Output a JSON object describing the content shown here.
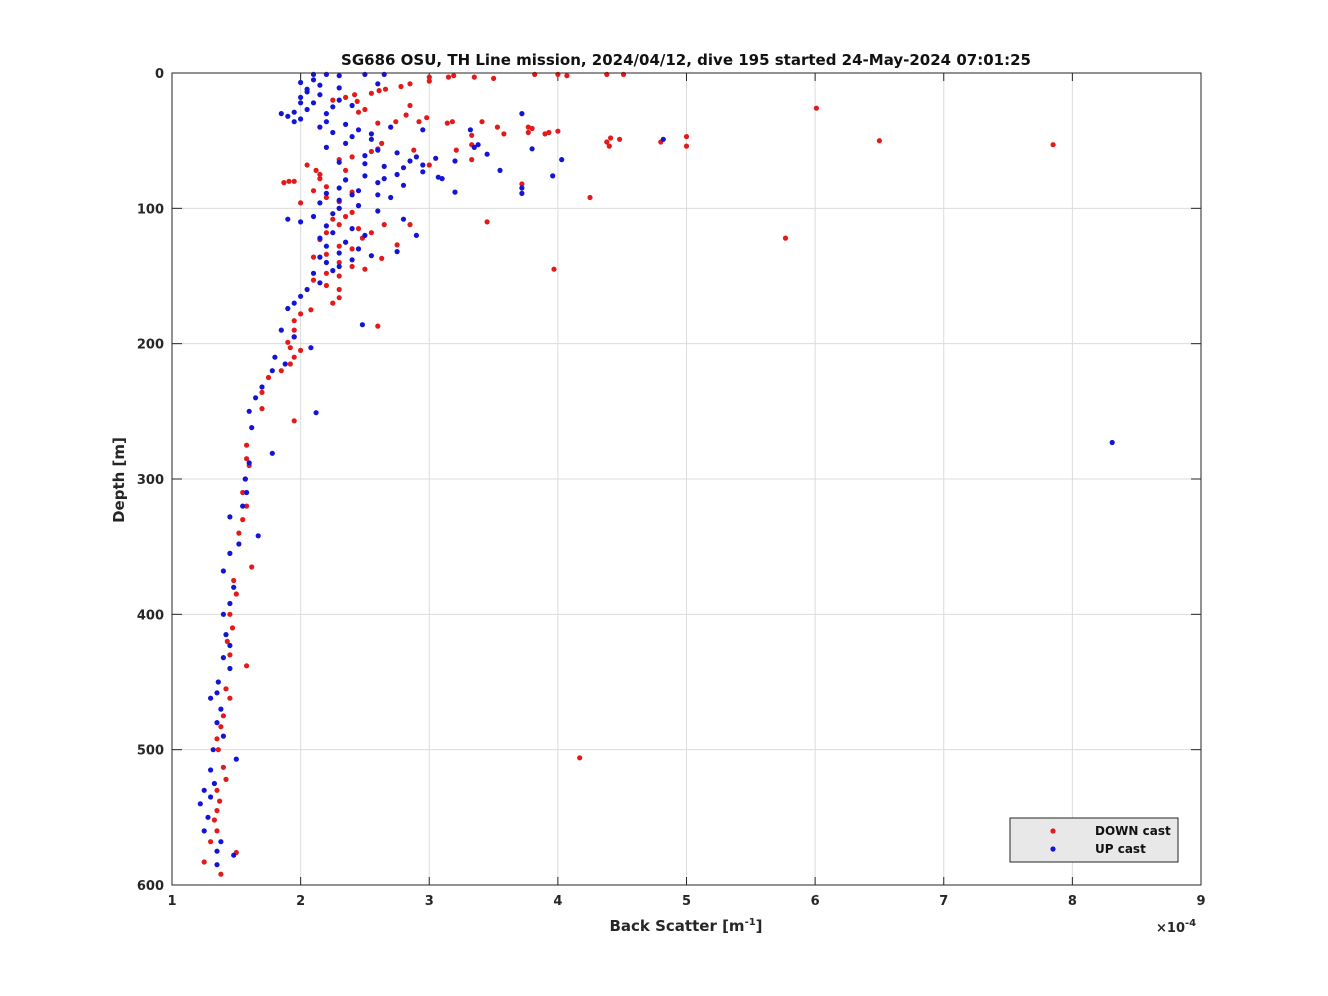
{
  "chart_data": {
    "type": "scatter",
    "title": "SG686 OSU, TH Line mission, 2024/04/12, dive 195 started 24-May-2024 07:01:25",
    "xlabel_main": "Back Scatter [m",
    "xlabel_sup": "-1",
    "xlabel_close": "]",
    "ylabel": "Depth [m]",
    "x_exponent_prefix": "×10",
    "x_exponent": "-4",
    "xlim": [
      1,
      9
    ],
    "ylim": [
      0,
      600
    ],
    "y_reversed": true,
    "grid": true,
    "legend_placement": "bottom-right",
    "x_ticks": [
      "1",
      "2",
      "3",
      "4",
      "5",
      "6",
      "7",
      "8",
      "9"
    ],
    "y_ticks": [
      "0",
      "100",
      "200",
      "300",
      "400",
      "500",
      "600"
    ],
    "colors": {
      "down": "#e41a1a",
      "up": "#1414d6"
    },
    "series": [
      {
        "name": "DOWN cast",
        "points": [
          [
            4.51,
            1
          ],
          [
            4.38,
            1
          ],
          [
            4.07,
            2
          ],
          [
            4.0,
            1
          ],
          [
            3.82,
            1
          ],
          [
            3.5,
            4
          ],
          [
            3.35,
            3
          ],
          [
            3.19,
            2
          ],
          [
            3.15,
            3
          ],
          [
            3.0,
            3
          ],
          [
            3.0,
            6
          ],
          [
            2.85,
            8
          ],
          [
            2.78,
            10
          ],
          [
            2.66,
            12
          ],
          [
            2.61,
            13
          ],
          [
            2.55,
            15
          ],
          [
            2.42,
            16
          ],
          [
            2.35,
            18
          ],
          [
            2.25,
            20
          ],
          [
            2.44,
            21
          ],
          [
            2.85,
            24
          ],
          [
            2.5,
            27
          ],
          [
            2.45,
            29
          ],
          [
            2.82,
            31
          ],
          [
            2.98,
            33
          ],
          [
            3.18,
            36
          ],
          [
            3.14,
            37
          ],
          [
            2.92,
            36
          ],
          [
            2.74,
            36
          ],
          [
            2.6,
            37
          ],
          [
            3.41,
            36
          ],
          [
            3.53,
            40
          ],
          [
            3.58,
            45
          ],
          [
            3.33,
            46
          ],
          [
            3.33,
            53
          ],
          [
            3.21,
            57
          ],
          [
            3.33,
            64
          ],
          [
            3.0,
            68
          ],
          [
            2.88,
            57
          ],
          [
            2.63,
            52
          ],
          [
            3.77,
            40
          ],
          [
            3.77,
            44
          ],
          [
            3.8,
            41
          ],
          [
            3.9,
            45
          ],
          [
            3.93,
            44
          ],
          [
            4.0,
            43
          ],
          [
            4.38,
            51
          ],
          [
            4.41,
            48
          ],
          [
            4.4,
            54
          ],
          [
            4.48,
            49
          ],
          [
            4.8,
            51
          ],
          [
            5.0,
            47
          ],
          [
            5.0,
            54
          ],
          [
            6.01,
            26
          ],
          [
            6.5,
            50
          ],
          [
            7.85,
            53
          ],
          [
            4.25,
            92
          ],
          [
            3.72,
            82
          ],
          [
            3.45,
            110
          ],
          [
            2.3,
            64
          ],
          [
            2.05,
            68
          ],
          [
            2.35,
            72
          ],
          [
            2.15,
            75
          ],
          [
            1.95,
            80
          ],
          [
            1.91,
            80
          ],
          [
            1.87,
            81
          ],
          [
            2.2,
            84
          ],
          [
            2.1,
            87
          ],
          [
            2.4,
            88
          ],
          [
            2.2,
            92
          ],
          [
            2.0,
            96
          ],
          [
            2.3,
            100
          ],
          [
            2.4,
            103
          ],
          [
            2.35,
            106
          ],
          [
            2.25,
            108
          ],
          [
            2.3,
            112
          ],
          [
            2.45,
            115
          ],
          [
            2.55,
            118
          ],
          [
            2.65,
            112
          ],
          [
            2.85,
            112
          ],
          [
            2.2,
            118
          ],
          [
            2.15,
            123
          ],
          [
            2.3,
            128
          ],
          [
            2.4,
            130
          ],
          [
            2.2,
            134
          ],
          [
            2.1,
            136
          ],
          [
            2.3,
            140
          ],
          [
            2.4,
            143
          ],
          [
            2.5,
            145
          ],
          [
            2.2,
            148
          ],
          [
            2.3,
            150
          ],
          [
            2.1,
            153
          ],
          [
            2.2,
            157
          ],
          [
            2.3,
            160
          ],
          [
            2.3,
            166
          ],
          [
            2.25,
            170
          ],
          [
            2.08,
            175
          ],
          [
            2.0,
            178
          ],
          [
            1.95,
            183
          ],
          [
            2.6,
            187
          ],
          [
            1.95,
            190
          ],
          [
            1.95,
            195
          ],
          [
            1.9,
            199
          ],
          [
            1.92,
            203
          ],
          [
            2.0,
            205
          ],
          [
            1.95,
            210
          ],
          [
            1.92,
            215
          ],
          [
            1.85,
            220
          ],
          [
            1.75,
            225
          ],
          [
            1.7,
            236
          ],
          [
            1.7,
            248
          ],
          [
            1.95,
            257
          ],
          [
            1.58,
            275
          ],
          [
            1.58,
            285
          ],
          [
            1.6,
            290
          ],
          [
            1.57,
            300
          ],
          [
            1.55,
            310
          ],
          [
            1.58,
            320
          ],
          [
            1.55,
            330
          ],
          [
            1.52,
            340
          ],
          [
            1.62,
            365
          ],
          [
            1.48,
            375
          ],
          [
            1.5,
            385
          ],
          [
            1.45,
            400
          ],
          [
            1.47,
            410
          ],
          [
            1.43,
            420
          ],
          [
            1.45,
            430
          ],
          [
            1.58,
            438
          ],
          [
            1.42,
            455
          ],
          [
            1.45,
            462
          ],
          [
            1.4,
            475
          ],
          [
            1.38,
            483
          ],
          [
            1.35,
            492
          ],
          [
            1.36,
            500
          ],
          [
            1.4,
            513
          ],
          [
            1.42,
            522
          ],
          [
            1.35,
            530
          ],
          [
            1.37,
            538
          ],
          [
            1.35,
            545
          ],
          [
            1.33,
            552
          ],
          [
            1.35,
            560
          ],
          [
            1.3,
            568
          ],
          [
            1.5,
            576
          ],
          [
            1.25,
            583
          ],
          [
            1.38,
            592
          ],
          [
            4.17,
            506
          ],
          [
            3.97,
            145
          ],
          [
            5.77,
            122
          ],
          [
            2.75,
            127
          ],
          [
            2.63,
            137
          ],
          [
            2.48,
            122
          ],
          [
            2.35,
            125
          ],
          [
            2.3,
            95
          ],
          [
            2.45,
            98
          ],
          [
            2.15,
            78
          ],
          [
            2.35,
            79
          ],
          [
            2.12,
            72
          ],
          [
            2.4,
            62
          ],
          [
            2.55,
            58
          ],
          [
            2.6,
            56
          ]
        ]
      },
      {
        "name": "UP cast",
        "points": [
          [
            2.1,
            1
          ],
          [
            2.2,
            1
          ],
          [
            2.3,
            2
          ],
          [
            2.5,
            1
          ],
          [
            2.65,
            1
          ],
          [
            2.1,
            5
          ],
          [
            2.0,
            7
          ],
          [
            2.15,
            9
          ],
          [
            2.3,
            11
          ],
          [
            2.05,
            14
          ],
          [
            2.15,
            16
          ],
          [
            2.0,
            18
          ],
          [
            2.3,
            20
          ],
          [
            2.1,
            22
          ],
          [
            2.4,
            24
          ],
          [
            2.25,
            25
          ],
          [
            2.05,
            27
          ],
          [
            1.95,
            29
          ],
          [
            1.85,
            30
          ],
          [
            1.9,
            32
          ],
          [
            2.0,
            34
          ],
          [
            1.95,
            36
          ],
          [
            2.2,
            36
          ],
          [
            2.35,
            38
          ],
          [
            2.15,
            40
          ],
          [
            2.45,
            42
          ],
          [
            2.25,
            44
          ],
          [
            2.4,
            47
          ],
          [
            2.55,
            45
          ],
          [
            2.7,
            40
          ],
          [
            2.95,
            42
          ],
          [
            2.55,
            49
          ],
          [
            2.35,
            52
          ],
          [
            2.2,
            55
          ],
          [
            2.6,
            57
          ],
          [
            2.75,
            59
          ],
          [
            2.5,
            61
          ],
          [
            2.9,
            62
          ],
          [
            3.05,
            63
          ],
          [
            3.2,
            65
          ],
          [
            2.3,
            66
          ],
          [
            2.5,
            67
          ],
          [
            2.65,
            69
          ],
          [
            2.8,
            70
          ],
          [
            2.95,
            73
          ],
          [
            2.75,
            75
          ],
          [
            2.5,
            76
          ],
          [
            2.35,
            79
          ],
          [
            2.6,
            81
          ],
          [
            2.8,
            83
          ],
          [
            2.3,
            85
          ],
          [
            2.45,
            87
          ],
          [
            2.2,
            89
          ],
          [
            2.4,
            90
          ],
          [
            2.7,
            92
          ],
          [
            2.3,
            94
          ],
          [
            2.15,
            96
          ],
          [
            2.45,
            98
          ],
          [
            2.3,
            100
          ],
          [
            2.6,
            102
          ],
          [
            2.25,
            104
          ],
          [
            2.1,
            106
          ],
          [
            1.9,
            108
          ],
          [
            2.0,
            110
          ],
          [
            2.2,
            113
          ],
          [
            2.4,
            115
          ],
          [
            2.25,
            118
          ],
          [
            2.5,
            120
          ],
          [
            2.15,
            122
          ],
          [
            2.35,
            125
          ],
          [
            2.2,
            128
          ],
          [
            2.45,
            130
          ],
          [
            2.3,
            133
          ],
          [
            2.15,
            136
          ],
          [
            2.4,
            138
          ],
          [
            2.2,
            140
          ],
          [
            2.3,
            143
          ],
          [
            2.25,
            146
          ],
          [
            2.1,
            148
          ],
          [
            2.15,
            155
          ],
          [
            2.05,
            160
          ],
          [
            2.0,
            165
          ],
          [
            1.95,
            170
          ],
          [
            1.9,
            174
          ],
          [
            1.85,
            190
          ],
          [
            1.95,
            195
          ],
          [
            2.08,
            203
          ],
          [
            1.8,
            210
          ],
          [
            1.88,
            215
          ],
          [
            1.78,
            220
          ],
          [
            1.7,
            232
          ],
          [
            1.65,
            240
          ],
          [
            1.6,
            250
          ],
          [
            1.62,
            262
          ],
          [
            1.78,
            281
          ],
          [
            1.6,
            288
          ],
          [
            1.57,
            300
          ],
          [
            1.58,
            310
          ],
          [
            1.55,
            320
          ],
          [
            1.45,
            328
          ],
          [
            1.67,
            342
          ],
          [
            1.52,
            348
          ],
          [
            1.45,
            355
          ],
          [
            1.4,
            368
          ],
          [
            1.48,
            380
          ],
          [
            1.45,
            392
          ],
          [
            1.4,
            400
          ],
          [
            1.42,
            415
          ],
          [
            1.45,
            423
          ],
          [
            1.4,
            432
          ],
          [
            1.45,
            440
          ],
          [
            1.36,
            450
          ],
          [
            1.35,
            458
          ],
          [
            1.3,
            462
          ],
          [
            1.38,
            470
          ],
          [
            1.35,
            480
          ],
          [
            1.4,
            490
          ],
          [
            1.32,
            500
          ],
          [
            1.5,
            507
          ],
          [
            1.3,
            515
          ],
          [
            1.33,
            525
          ],
          [
            1.25,
            530
          ],
          [
            1.3,
            535
          ],
          [
            1.22,
            540
          ],
          [
            1.28,
            550
          ],
          [
            1.25,
            560
          ],
          [
            1.38,
            568
          ],
          [
            1.35,
            575
          ],
          [
            1.48,
            578
          ],
          [
            1.35,
            585
          ],
          [
            2.12,
            251
          ],
          [
            2.48,
            186
          ],
          [
            8.31,
            273
          ],
          [
            4.03,
            64
          ],
          [
            3.96,
            76
          ],
          [
            3.72,
            85
          ],
          [
            3.72,
            89
          ],
          [
            3.8,
            56
          ],
          [
            3.72,
            30
          ],
          [
            4.82,
            49
          ],
          [
            3.32,
            42
          ],
          [
            3.35,
            55
          ],
          [
            3.38,
            53
          ],
          [
            3.45,
            60
          ],
          [
            3.55,
            72
          ],
          [
            3.07,
            77
          ],
          [
            2.9,
            120
          ],
          [
            2.75,
            132
          ],
          [
            2.55,
            135
          ],
          [
            2.8,
            108
          ],
          [
            2.6,
            90
          ],
          [
            2.0,
            22
          ],
          [
            2.2,
            30
          ],
          [
            2.05,
            12
          ],
          [
            2.6,
            8
          ],
          [
            3.2,
            88
          ],
          [
            3.1,
            78
          ],
          [
            2.95,
            68
          ],
          [
            2.85,
            65
          ],
          [
            2.65,
            78
          ]
        ]
      }
    ]
  }
}
